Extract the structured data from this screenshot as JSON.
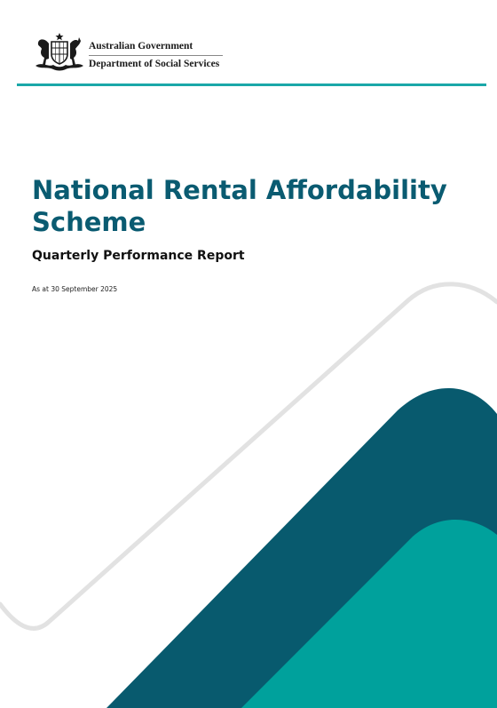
{
  "colors": {
    "brand_teal": "#1aa7a8",
    "title_navy_teal": "#0a5b71",
    "band_dark": "#085a6e",
    "band_light": "#00a19c",
    "outline_grey": "#e2e2e2"
  },
  "header": {
    "crest_icon": "commonwealth-coat-of-arms-icon",
    "government": "Australian Government",
    "department": "Department of Social Services"
  },
  "cover": {
    "title": "National Rental Affordability Scheme",
    "subtitle": "Quarterly Performance Report",
    "date": "As at 30 September 2025"
  }
}
